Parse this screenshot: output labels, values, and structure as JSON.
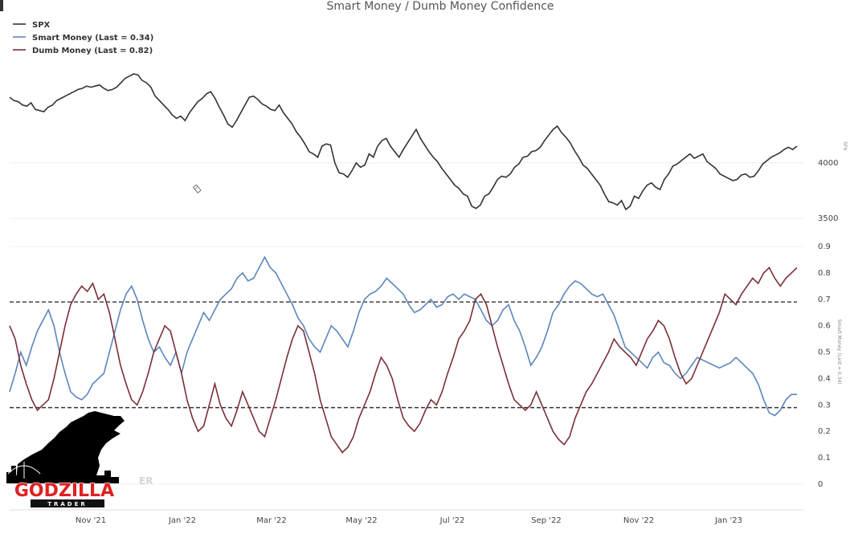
{
  "chart_data": {
    "type": "line",
    "title": "Smart Money / Dumb Money Confidence",
    "legend_position": "top-left",
    "x_ticks": [
      "Nov '21",
      "Jan '22",
      "Mar '22",
      "May '22",
      "Jul '22",
      "Sep '22",
      "Nov '22",
      "Jan '23"
    ],
    "panels": [
      {
        "name": "spx",
        "axis_label": "SPX",
        "y_ticks": [
          4000,
          3500
        ],
        "ylim": [
          3500,
          4800
        ],
        "series": [
          {
            "name": "SPX",
            "color": "#333333",
            "values": [
              4590,
              4560,
              4550,
              4520,
              4510,
              4540,
              4480,
              4470,
              4460,
              4500,
              4520,
              4560,
              4580,
              4600,
              4620,
              4640,
              4660,
              4670,
              4690,
              4680,
              4690,
              4700,
              4670,
              4650,
              4660,
              4680,
              4720,
              4760,
              4780,
              4800,
              4790,
              4740,
              4720,
              4680,
              4600,
              4560,
              4520,
              4480,
              4430,
              4400,
              4420,
              4380,
              4450,
              4500,
              4550,
              4580,
              4620,
              4640,
              4580,
              4500,
              4430,
              4350,
              4320,
              4380,
              4450,
              4520,
              4590,
              4600,
              4570,
              4530,
              4510,
              4480,
              4470,
              4520,
              4450,
              4400,
              4350,
              4280,
              4230,
              4170,
              4100,
              4080,
              4050,
              4150,
              4170,
              4160,
              4000,
              3910,
              3900,
              3870,
              3930,
              4000,
              3960,
              3980,
              4080,
              4050,
              4150,
              4200,
              4220,
              4150,
              4100,
              4050,
              4120,
              4180,
              4240,
              4300,
              4220,
              4160,
              4100,
              4050,
              4010,
              3950,
              3900,
              3850,
              3800,
              3770,
              3720,
              3700,
              3610,
              3590,
              3620,
              3700,
              3720,
              3780,
              3850,
              3880,
              3870,
              3900,
              3960,
              3990,
              4050,
              4060,
              4100,
              4110,
              4140,
              4200,
              4250,
              4300,
              4330,
              4270,
              4230,
              4180,
              4110,
              4050,
              3980,
              3950,
              3900,
              3850,
              3800,
              3720,
              3650,
              3640,
              3620,
              3660,
              3580,
              3610,
              3700,
              3680,
              3750,
              3800,
              3820,
              3780,
              3760,
              3850,
              3900,
              3970,
              3990,
              4020,
              4050,
              4080,
              4040,
              4060,
              4080,
              4010,
              3980,
              3950,
              3900,
              3880,
              3860,
              3840,
              3850,
              3890,
              3900,
              3870,
              3880,
              3930,
              3990,
              4020,
              4050,
              4070,
              4090,
              4120,
              4140,
              4120,
              4150
            ]
          }
        ]
      },
      {
        "name": "confidence",
        "axis_label": "Smart Money (Last = 0.34)",
        "y_ticks": [
          0.9,
          0.8,
          0.7,
          0.6,
          0.5,
          0.4,
          0.3,
          0.2,
          0.1,
          0
        ],
        "ylim": [
          0,
          0.9
        ],
        "reference_lines": [
          0.69,
          0.29
        ],
        "series": [
          {
            "name": "Smart Money (Last = 0.34)",
            "color": "#5b86bd",
            "values": [
              0.35,
              0.42,
              0.5,
              0.45,
              0.52,
              0.58,
              0.62,
              0.66,
              0.6,
              0.5,
              0.42,
              0.35,
              0.33,
              0.32,
              0.34,
              0.38,
              0.4,
              0.42,
              0.5,
              0.58,
              0.66,
              0.72,
              0.75,
              0.7,
              0.62,
              0.55,
              0.5,
              0.52,
              0.48,
              0.45,
              0.5,
              0.42,
              0.5,
              0.55,
              0.6,
              0.65,
              0.62,
              0.66,
              0.7,
              0.72,
              0.74,
              0.78,
              0.8,
              0.77,
              0.78,
              0.82,
              0.86,
              0.82,
              0.8,
              0.76,
              0.72,
              0.68,
              0.63,
              0.6,
              0.55,
              0.52,
              0.5,
              0.55,
              0.6,
              0.58,
              0.55,
              0.52,
              0.58,
              0.65,
              0.7,
              0.72,
              0.73,
              0.75,
              0.78,
              0.76,
              0.74,
              0.72,
              0.68,
              0.65,
              0.66,
              0.68,
              0.7,
              0.67,
              0.68,
              0.71,
              0.72,
              0.7,
              0.72,
              0.71,
              0.7,
              0.66,
              0.62,
              0.6,
              0.62,
              0.66,
              0.68,
              0.62,
              0.58,
              0.52,
              0.45,
              0.48,
              0.52,
              0.58,
              0.65,
              0.68,
              0.72,
              0.75,
              0.77,
              0.76,
              0.74,
              0.72,
              0.71,
              0.72,
              0.68,
              0.64,
              0.58,
              0.52,
              0.5,
              0.48,
              0.46,
              0.44,
              0.48,
              0.5,
              0.46,
              0.45,
              0.42,
              0.4,
              0.42,
              0.45,
              0.48,
              0.47,
              0.46,
              0.45,
              0.44,
              0.45,
              0.46,
              0.48,
              0.46,
              0.44,
              0.42,
              0.38,
              0.32,
              0.27,
              0.26,
              0.28,
              0.32,
              0.34,
              0.34
            ]
          },
          {
            "name": "Dumb Money (Last = 0.82)",
            "color": "#7a2f36",
            "values": [
              0.6,
              0.55,
              0.45,
              0.38,
              0.32,
              0.28,
              0.3,
              0.32,
              0.4,
              0.5,
              0.6,
              0.68,
              0.72,
              0.75,
              0.73,
              0.76,
              0.7,
              0.72,
              0.65,
              0.55,
              0.45,
              0.38,
              0.32,
              0.3,
              0.35,
              0.42,
              0.5,
              0.55,
              0.6,
              0.58,
              0.5,
              0.42,
              0.32,
              0.25,
              0.2,
              0.22,
              0.3,
              0.38,
              0.3,
              0.25,
              0.22,
              0.28,
              0.35,
              0.3,
              0.25,
              0.2,
              0.18,
              0.25,
              0.32,
              0.4,
              0.48,
              0.55,
              0.6,
              0.58,
              0.5,
              0.42,
              0.32,
              0.25,
              0.18,
              0.15,
              0.12,
              0.14,
              0.18,
              0.25,
              0.3,
              0.35,
              0.42,
              0.48,
              0.45,
              0.4,
              0.32,
              0.25,
              0.22,
              0.2,
              0.23,
              0.28,
              0.32,
              0.3,
              0.35,
              0.42,
              0.48,
              0.55,
              0.58,
              0.62,
              0.7,
              0.72,
              0.68,
              0.6,
              0.52,
              0.45,
              0.38,
              0.32,
              0.3,
              0.28,
              0.3,
              0.35,
              0.3,
              0.25,
              0.2,
              0.17,
              0.15,
              0.18,
              0.25,
              0.3,
              0.35,
              0.38,
              0.42,
              0.46,
              0.5,
              0.55,
              0.52,
              0.5,
              0.48,
              0.45,
              0.5,
              0.55,
              0.58,
              0.62,
              0.6,
              0.55,
              0.48,
              0.42,
              0.38,
              0.4,
              0.45,
              0.5,
              0.55,
              0.6,
              0.65,
              0.72,
              0.7,
              0.68,
              0.72,
              0.75,
              0.78,
              0.76,
              0.8,
              0.82,
              0.78,
              0.75,
              0.78,
              0.8,
              0.82
            ]
          }
        ]
      }
    ],
    "watermark_partial": "ER",
    "logo": {
      "word": "GODZILLA",
      "sub": "TRADER"
    }
  }
}
